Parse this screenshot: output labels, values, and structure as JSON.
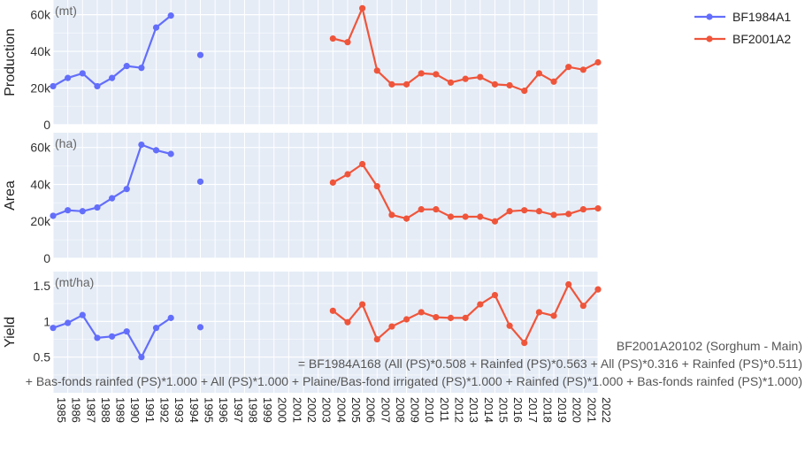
{
  "chart_data": {
    "type": "line",
    "x": [
      1985,
      1986,
      1987,
      1988,
      1989,
      1990,
      1991,
      1992,
      1993,
      1994,
      1995,
      1996,
      1997,
      1998,
      1999,
      2000,
      2001,
      2002,
      2003,
      2004,
      2005,
      2006,
      2007,
      2008,
      2009,
      2010,
      2011,
      2012,
      2013,
      2014,
      2015,
      2016,
      2017,
      2018,
      2019,
      2020,
      2021,
      2022
    ],
    "x_tick_labels": [
      "1985",
      "1986",
      "1987",
      "1988",
      "1989",
      "1990",
      "1991",
      "1992",
      "1993",
      "1994",
      "1995",
      "1996",
      "1997",
      "1998",
      "1999",
      "2000",
      "2001",
      "2002",
      "2003",
      "2004",
      "2005",
      "2006",
      "2007",
      "2008",
      "2009",
      "2010",
      "2011",
      "2012",
      "2013",
      "2014",
      "2015",
      "2016",
      "2017",
      "2018",
      "2019",
      "2020",
      "2021",
      "2022"
    ],
    "legend": {
      "placement": "top-right",
      "entries": [
        {
          "name": "BF1984A1",
          "color": "#636efa"
        },
        {
          "name": "BF2001A2",
          "color": "#ef553b"
        }
      ]
    },
    "panels": [
      {
        "ylabel": "Production",
        "unit": "(mt)",
        "ylim": [
          0,
          68000
        ],
        "yticks": [
          0,
          20000,
          40000,
          60000
        ],
        "ytick_labels": [
          "0",
          "20k",
          "40k",
          "60k"
        ],
        "series": [
          {
            "name": "BF1984A1",
            "color": "#636efa",
            "segments": [
              {
                "x": [
                  1985,
                  1986,
                  1987,
                  1988,
                  1989,
                  1990,
                  1991,
                  1992,
                  1993
                ],
                "y": [
                  21000,
                  25500,
                  28000,
                  21000,
                  25500,
                  32000,
                  31000,
                  53000,
                  59500
                ]
              },
              {
                "x": [
                  1995
                ],
                "y": [
                  38000
                ]
              }
            ]
          },
          {
            "name": "BF2001A2",
            "color": "#ef553b",
            "segments": [
              {
                "x": [
                  2004,
                  2005,
                  2006,
                  2007,
                  2008,
                  2009,
                  2010,
                  2011,
                  2012,
                  2013,
                  2014,
                  2015,
                  2016,
                  2017,
                  2018,
                  2019,
                  2020,
                  2021,
                  2022
                ],
                "y": [
                  47000,
                  45000,
                  63500,
                  29500,
                  22000,
                  22000,
                  28000,
                  27500,
                  23000,
                  25000,
                  26000,
                  22000,
                  21500,
                  18500,
                  28000,
                  23500,
                  31500,
                  30000,
                  34000
                ]
              }
            ]
          }
        ]
      },
      {
        "ylabel": "Area",
        "unit": "(ha)",
        "ylim": [
          0,
          68000
        ],
        "yticks": [
          0,
          20000,
          40000,
          60000
        ],
        "ytick_labels": [
          "0",
          "20k",
          "40k",
          "60k"
        ],
        "series": [
          {
            "name": "BF1984A1",
            "color": "#636efa",
            "segments": [
              {
                "x": [
                  1985,
                  1986,
                  1987,
                  1988,
                  1989,
                  1990,
                  1991,
                  1992,
                  1993
                ],
                "y": [
                  23000,
                  26000,
                  25500,
                  27500,
                  32500,
                  37500,
                  61500,
                  58500,
                  56500
                ]
              },
              {
                "x": [
                  1995
                ],
                "y": [
                  41500
                ]
              }
            ]
          },
          {
            "name": "BF2001A2",
            "color": "#ef553b",
            "segments": [
              {
                "x": [
                  2004,
                  2005,
                  2006,
                  2007,
                  2008,
                  2009,
                  2010,
                  2011,
                  2012,
                  2013,
                  2014,
                  2015,
                  2016,
                  2017,
                  2018,
                  2019,
                  2020,
                  2021,
                  2022
                ],
                "y": [
                  41000,
                  45500,
                  51000,
                  39000,
                  23500,
                  21500,
                  26500,
                  26500,
                  22500,
                  22500,
                  22500,
                  20000,
                  25500,
                  26000,
                  25500,
                  23500,
                  24000,
                  26500,
                  27000
                ]
              }
            ]
          }
        ]
      },
      {
        "ylabel": "Yield",
        "unit": "(mt/ha)",
        "ylim": [
          0,
          1.7
        ],
        "yticks": [
          0.5,
          1,
          1.5
        ],
        "ytick_labels": [
          "0.5",
          "1",
          "1.5"
        ],
        "series": [
          {
            "name": "BF1984A1",
            "color": "#636efa",
            "segments": [
              {
                "x": [
                  1985,
                  1986,
                  1987,
                  1988,
                  1989,
                  1990,
                  1991,
                  1992,
                  1993
                ],
                "y": [
                  0.91,
                  0.98,
                  1.09,
                  0.77,
                  0.79,
                  0.86,
                  0.5,
                  0.91,
                  1.05
                ]
              },
              {
                "x": [
                  1995
                ],
                "y": [
                  0.92
                ]
              }
            ]
          },
          {
            "name": "BF2001A2",
            "color": "#ef553b",
            "segments": [
              {
                "x": [
                  2004,
                  2005,
                  2006,
                  2007,
                  2008,
                  2009,
                  2010,
                  2011,
                  2012,
                  2013,
                  2014,
                  2015,
                  2016,
                  2017,
                  2018,
                  2019,
                  2020,
                  2021,
                  2022
                ],
                "y": [
                  1.15,
                  0.99,
                  1.24,
                  0.75,
                  0.93,
                  1.03,
                  1.13,
                  1.06,
                  1.05,
                  1.05,
                  1.24,
                  1.37,
                  0.94,
                  0.7,
                  1.13,
                  1.08,
                  1.52,
                  1.22,
                  1.45
                ]
              }
            ]
          }
        ]
      }
    ],
    "annotation": [
      "BF2001A20102 (Sorghum - Main)",
      "= BF1984A168 (All (PS)*0.508 + Rainfed (PS)*0.563 + All (PS)*0.316 + Rainfed (PS)*0.511)",
      "+ Bas-fonds rainfed (PS)*1.000 + All (PS)*1.000 + Plaine/Bas-fond irrigated (PS)*1.000 + Rainfed (PS)*1.000 + Bas-fonds rainfed (PS)*1.000)"
    ]
  }
}
